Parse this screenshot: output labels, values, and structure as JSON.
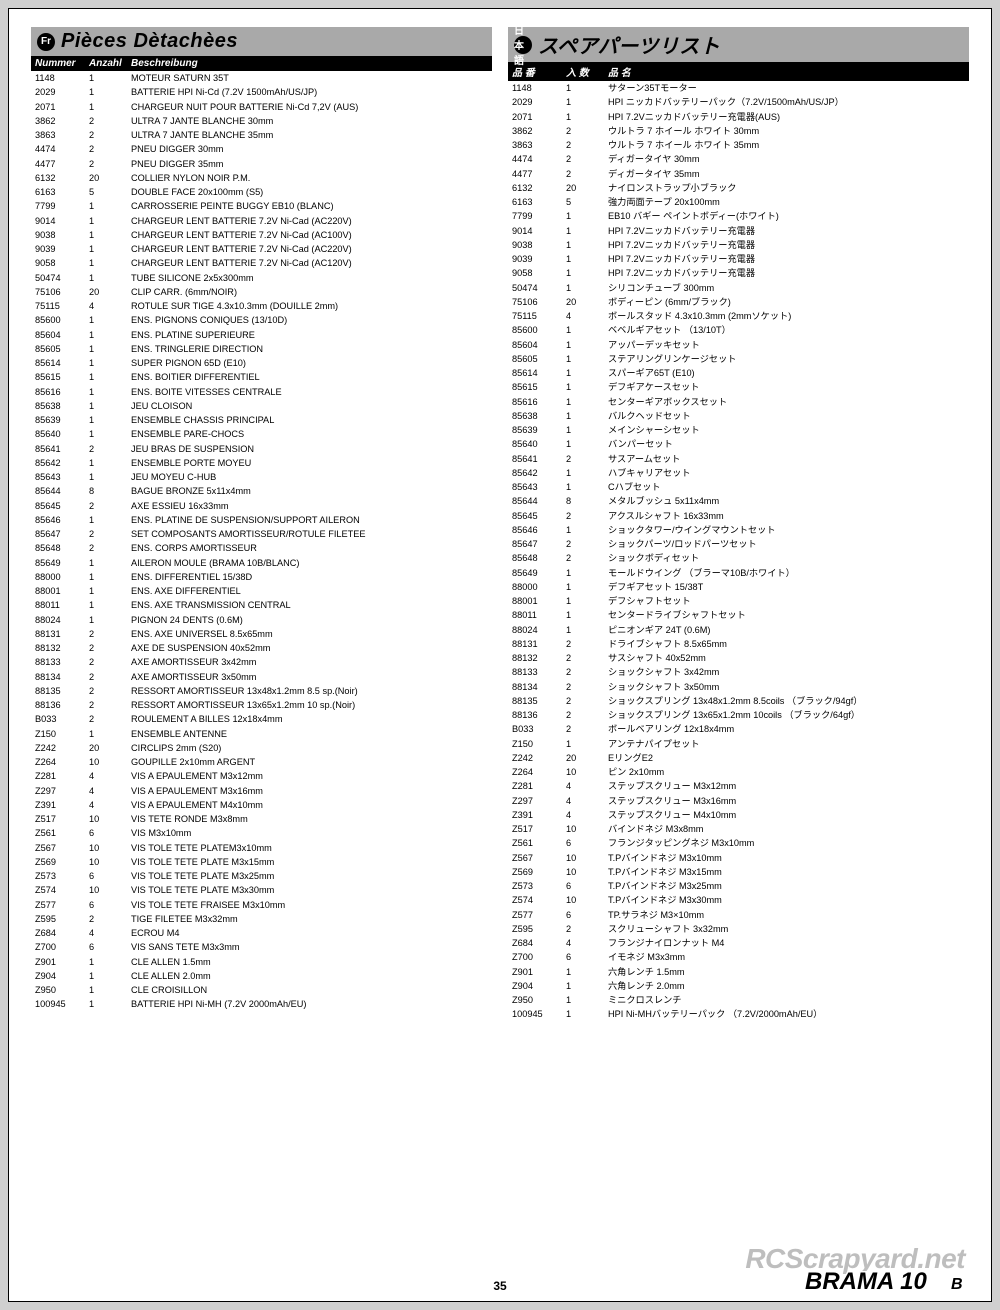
{
  "page_number": "35",
  "watermark": "RCScrapyard.net",
  "brand": "BRAMA 10B",
  "left": {
    "lang_code": "Fr",
    "title": "Pièces Dètachèes",
    "headers": {
      "num": "Nummer",
      "qty": "Anzahl",
      "desc": "Beschreibung"
    },
    "rows": [
      [
        "1148",
        "1",
        "MOTEUR SATURN 35T"
      ],
      [
        "2029",
        "1",
        "BATTERIE HPI Ni-Cd (7.2V 1500mAh/US/JP)"
      ],
      [
        "2071",
        "1",
        "CHARGEUR NUIT POUR BATTERIE Ni-Cd 7,2V (AUS)"
      ],
      [
        "3862",
        "2",
        "ULTRA 7 JANTE BLANCHE 30mm"
      ],
      [
        "3863",
        "2",
        "ULTRA 7 JANTE BLANCHE 35mm"
      ],
      [
        "4474",
        "2",
        "PNEU DIGGER 30mm"
      ],
      [
        "4477",
        "2",
        "PNEU DIGGER 35mm"
      ],
      [
        "6132",
        "20",
        "COLLIER NYLON NOIR P.M."
      ],
      [
        "6163",
        "5",
        "DOUBLE FACE 20x100mm (S5)"
      ],
      [
        "7799",
        "1",
        "CARROSSERIE PEINTE BUGGY EB10 (BLANC)"
      ],
      [
        "9014",
        "1",
        "CHARGEUR LENT BATTERIE 7.2V Ni-Cad (AC220V)"
      ],
      [
        "9038",
        "1",
        "CHARGEUR LENT BATTERIE 7.2V Ni-Cad (AC100V)"
      ],
      [
        "9039",
        "1",
        "CHARGEUR LENT BATTERIE 7.2V Ni-Cad (AC220V)"
      ],
      [
        "9058",
        "1",
        "CHARGEUR LENT BATTERIE 7.2V Ni-Cad (AC120V)"
      ],
      [
        "50474",
        "1",
        "TUBE SILICONE 2x5x300mm"
      ],
      [
        "75106",
        "20",
        "CLIP CARR. (6mm/NOIR)"
      ],
      [
        "75115",
        "4",
        "ROTULE SUR TIGE 4.3x10.3mm (DOUILLE 2mm)"
      ],
      [
        "85600",
        "1",
        "ENS. PIGNONS CONIQUES (13/10D)"
      ],
      [
        "85604",
        "1",
        "ENS. PLATINE SUPERIEURE"
      ],
      [
        "85605",
        "1",
        "ENS. TRINGLERIE DIRECTION"
      ],
      [
        "85614",
        "1",
        "SUPER PIGNON 65D (E10)"
      ],
      [
        "85615",
        "1",
        "ENS. BOITIER DIFFERENTIEL"
      ],
      [
        "85616",
        "1",
        "ENS. BOITE VITESSES CENTRALE"
      ],
      [
        "85638",
        "1",
        "JEU CLOISON"
      ],
      [
        "85639",
        "1",
        "ENSEMBLE CHASSIS PRINCIPAL"
      ],
      [
        "85640",
        "1",
        "ENSEMBLE PARE-CHOCS"
      ],
      [
        "85641",
        "2",
        "JEU BRAS DE SUSPENSION"
      ],
      [
        "85642",
        "1",
        "ENSEMBLE PORTE MOYEU"
      ],
      [
        "85643",
        "1",
        "JEU MOYEU C-HUB"
      ],
      [
        "85644",
        "8",
        "BAGUE BRONZE 5x11x4mm"
      ],
      [
        "85645",
        "2",
        "AXE ESSIEU 16x33mm"
      ],
      [
        "85646",
        "1",
        "ENS. PLATINE DE SUSPENSION/SUPPORT AILERON"
      ],
      [
        "85647",
        "2",
        "SET COMPOSANTS AMORTISSEUR/ROTULE FILETEE"
      ],
      [
        "85648",
        "2",
        "ENS. CORPS AMORTISSEUR"
      ],
      [
        "85649",
        "1",
        "AILERON MOULE (BRAMA 10B/BLANC)"
      ],
      [
        "88000",
        "1",
        "ENS. DIFFERENTIEL 15/38D"
      ],
      [
        "88001",
        "1",
        "ENS. AXE DIFFERENTIEL"
      ],
      [
        "88011",
        "1",
        "ENS. AXE TRANSMISSION CENTRAL"
      ],
      [
        "88024",
        "1",
        "PIGNON 24 DENTS (0.6M)"
      ],
      [
        "88131",
        "2",
        "ENS. AXE UNIVERSEL 8.5x65mm"
      ],
      [
        "88132",
        "2",
        "AXE DE SUSPENSION 40x52mm"
      ],
      [
        "88133",
        "2",
        "AXE AMORTISSEUR 3x42mm"
      ],
      [
        "88134",
        "2",
        "AXE AMORTISSEUR 3x50mm"
      ],
      [
        "88135",
        "2",
        "RESSORT AMORTISSEUR 13x48x1.2mm 8.5 sp.(Noir)"
      ],
      [
        "88136",
        "2",
        "RESSORT AMORTISSEUR 13x65x1.2mm 10 sp.(Noir)"
      ],
      [
        "B033",
        "2",
        "ROULEMENT A BILLES 12x18x4mm"
      ],
      [
        "Z150",
        "1",
        "ENSEMBLE ANTENNE"
      ],
      [
        "Z242",
        "20",
        "CIRCLIPS 2mm (S20)"
      ],
      [
        "Z264",
        "10",
        "GOUPILLE 2x10mm ARGENT"
      ],
      [
        "Z281",
        "4",
        "VIS A EPAULEMENT M3x12mm"
      ],
      [
        "Z297",
        "4",
        "VIS A EPAULEMENT M3x16mm"
      ],
      [
        "Z391",
        "4",
        "VIS A EPAULEMENT M4x10mm"
      ],
      [
        "Z517",
        "10",
        "VIS TETE RONDE M3x8mm"
      ],
      [
        "Z561",
        "6",
        "VIS M3x10mm"
      ],
      [
        "Z567",
        "10",
        "VIS TOLE TETE PLATEM3x10mm"
      ],
      [
        "Z569",
        "10",
        "VIS TOLE TETE PLATE M3x15mm"
      ],
      [
        "Z573",
        "6",
        "VIS TOLE TETE PLATE M3x25mm"
      ],
      [
        "Z574",
        "10",
        "VIS TOLE TETE PLATE M3x30mm"
      ],
      [
        "Z577",
        "6",
        "VIS TOLE TETE FRAISEE M3x10mm"
      ],
      [
        "Z595",
        "2",
        "TIGE FILETEE M3x32mm"
      ],
      [
        "Z684",
        "4",
        "ECROU M4"
      ],
      [
        "Z700",
        "6",
        "VIS SANS TETE M3x3mm"
      ],
      [
        "Z901",
        "1",
        "CLE ALLEN 1.5mm"
      ],
      [
        "Z904",
        "1",
        "CLE ALLEN 2.0mm"
      ],
      [
        "Z950",
        "1",
        "CLE CROISILLON"
      ],
      [
        "100945",
        "1",
        "BATTERIE HPI Ni-MH (7.2V 2000mAh/EU)"
      ]
    ]
  },
  "right": {
    "lang_code": "日本語",
    "title": "スペアパーツリスト",
    "headers": {
      "num": "品 番",
      "qty": "入 数",
      "desc": "品 名"
    },
    "rows": [
      [
        "1148",
        "1",
        "サターン35Tモーター"
      ],
      [
        "2029",
        "1",
        "HPI ニッカドバッテリーパック（7.2V/1500mAh/US/JP）"
      ],
      [
        "2071",
        "1",
        "HPI 7.2Vニッカドバッテリー充電器(AUS)"
      ],
      [
        "3862",
        "2",
        "ウルトラ 7 ホイール ホワイト 30mm"
      ],
      [
        "3863",
        "2",
        "ウルトラ 7 ホイール ホワイト 35mm"
      ],
      [
        "4474",
        "2",
        "ディガータイヤ 30mm"
      ],
      [
        "4477",
        "2",
        "ディガータイヤ 35mm"
      ],
      [
        "6132",
        "20",
        "ナイロンストラップ小ブラック"
      ],
      [
        "6163",
        "5",
        "強力両面テープ 20x100mm"
      ],
      [
        "7799",
        "1",
        "EB10 バギー ペイントボディー(ホワイト)"
      ],
      [
        "9014",
        "1",
        "HPI 7.2Vニッカドバッテリー充電器"
      ],
      [
        "9038",
        "1",
        "HPI 7.2Vニッカドバッテリー充電器"
      ],
      [
        "9039",
        "1",
        "HPI 7.2Vニッカドバッテリー充電器"
      ],
      [
        "9058",
        "1",
        "HPI 7.2Vニッカドバッテリー充電器"
      ],
      [
        "50474",
        "1",
        "シリコンチューブ 300mm"
      ],
      [
        "75106",
        "20",
        "ボディーピン (6mm/ブラック)"
      ],
      [
        "75115",
        "4",
        "ボールスタッド 4.3x10.3mm (2mmソケット)"
      ],
      [
        "85600",
        "1",
        "ベベルギアセット （13/10T）"
      ],
      [
        "85604",
        "1",
        "アッパーデッキセット"
      ],
      [
        "85605",
        "1",
        "ステアリングリンケージセット"
      ],
      [
        "85614",
        "1",
        "スパーギア65T (E10)"
      ],
      [
        "85615",
        "1",
        "デフギアケースセット"
      ],
      [
        "85616",
        "1",
        "センターギアボックスセット"
      ],
      [
        "85638",
        "1",
        "バルクヘッドセット"
      ],
      [
        "85639",
        "1",
        "メインシャーシセット"
      ],
      [
        "85640",
        "1",
        "バンパーセット"
      ],
      [
        "85641",
        "2",
        "サスアームセット"
      ],
      [
        "85642",
        "1",
        "ハブキャリアセット"
      ],
      [
        "85643",
        "1",
        "Cハブセット"
      ],
      [
        "85644",
        "8",
        "メタルブッシュ 5x11x4mm"
      ],
      [
        "85645",
        "2",
        "アクスルシャフト 16x33mm"
      ],
      [
        "85646",
        "1",
        "ショックタワー/ウイングマウントセット"
      ],
      [
        "85647",
        "2",
        "ショックパーツ/ロッドパーツセット"
      ],
      [
        "85648",
        "2",
        "ショックボディセット"
      ],
      [
        "85649",
        "1",
        "モールドウイング （ブラーマ10B/ホワイト）"
      ],
      [
        "88000",
        "1",
        "デフギアセット 15/38T"
      ],
      [
        "88001",
        "1",
        "デフシャフトセット"
      ],
      [
        "88011",
        "1",
        "センタードライブシャフトセット"
      ],
      [
        "88024",
        "1",
        "ピニオンギア 24T (0.6M)"
      ],
      [
        "88131",
        "2",
        "ドライブシャフト 8.5x65mm"
      ],
      [
        "88132",
        "2",
        "サスシャフト 40x52mm"
      ],
      [
        "88133",
        "2",
        "ショックシャフト 3x42mm"
      ],
      [
        "88134",
        "2",
        "ショックシャフト 3x50mm"
      ],
      [
        "88135",
        "2",
        "ショックスプリング 13x48x1.2mm 8.5coils （ブラック/94gf）"
      ],
      [
        "88136",
        "2",
        "ショックスプリング 13x65x1.2mm 10coils （ブラック/64gf）"
      ],
      [
        "B033",
        "2",
        "ボールベアリング 12x18x4mm"
      ],
      [
        "Z150",
        "1",
        "アンテナパイプセット"
      ],
      [
        "Z242",
        "20",
        "EリングE2"
      ],
      [
        "Z264",
        "10",
        "ピン 2x10mm"
      ],
      [
        "Z281",
        "4",
        "ステップスクリュー M3x12mm"
      ],
      [
        "Z297",
        "4",
        "ステップスクリュー M3x16mm"
      ],
      [
        "Z391",
        "4",
        "ステップスクリュー M4x10mm"
      ],
      [
        "Z517",
        "10",
        "バインドネジ M3x8mm"
      ],
      [
        "Z561",
        "6",
        "フランジタッピングネジ M3x10mm"
      ],
      [
        "Z567",
        "10",
        "T.Pバインドネジ M3x10mm"
      ],
      [
        "Z569",
        "10",
        "T.Pバインドネジ M3x15mm"
      ],
      [
        "Z573",
        "6",
        "T.Pバインドネジ M3x25mm"
      ],
      [
        "Z574",
        "10",
        "T.Pバインドネジ M3x30mm"
      ],
      [
        "Z577",
        "6",
        "TP.サラネジ M3×10mm"
      ],
      [
        "Z595",
        "2",
        "スクリューシャフト 3x32mm"
      ],
      [
        "Z684",
        "4",
        "フランジナイロンナット M4"
      ],
      [
        "Z700",
        "6",
        "イモネジ M3x3mm"
      ],
      [
        "Z901",
        "1",
        "六角レンチ 1.5mm"
      ],
      [
        "Z904",
        "1",
        "六角レンチ 2.0mm"
      ],
      [
        "Z950",
        "1",
        "ミニクロスレンチ"
      ],
      [
        "100945",
        "1",
        "HPI Ni-MHバッテリーパック （7.2V/2000mAh/EU）"
      ]
    ]
  }
}
